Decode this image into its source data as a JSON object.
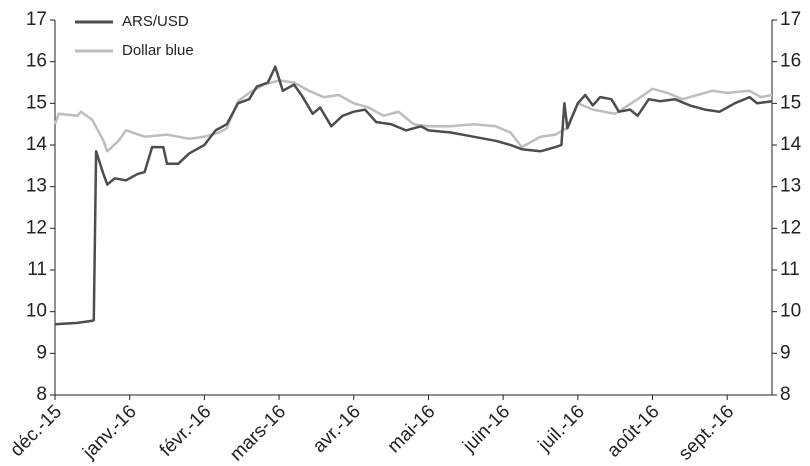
{
  "chart_data": {
    "type": "line",
    "xlim": [
      0,
      9.6
    ],
    "xticks": [
      {
        "value": 0,
        "label": "déc.-15"
      },
      {
        "value": 1,
        "label": "janv.-16"
      },
      {
        "value": 2,
        "label": "févr.-16"
      },
      {
        "value": 3,
        "label": "mars-16"
      },
      {
        "value": 4,
        "label": "avr.-16"
      },
      {
        "value": 5,
        "label": "mai-16"
      },
      {
        "value": 6,
        "label": "juin-16"
      },
      {
        "value": 7,
        "label": "juil.-16"
      },
      {
        "value": 8,
        "label": "août-16"
      },
      {
        "value": 9,
        "label": "sept.-16"
      }
    ],
    "ylim": [
      8,
      17
    ],
    "yticks": [
      8,
      9,
      10,
      11,
      12,
      13,
      14,
      15,
      16,
      17
    ],
    "y2lim": [
      8,
      17
    ],
    "y2ticks": [
      8,
      9,
      10,
      11,
      12,
      13,
      14,
      15,
      16,
      17
    ],
    "legend": "upper left",
    "series": [
      {
        "name": "ARS/USD",
        "color": "#4d4d4d",
        "x": [
          0,
          0.3,
          0.5,
          0.52,
          0.55,
          0.65,
          0.7,
          0.8,
          0.95,
          1.1,
          1.2,
          1.3,
          1.45,
          1.5,
          1.65,
          1.8,
          2.0,
          2.15,
          2.3,
          2.45,
          2.6,
          2.7,
          2.85,
          2.95,
          3.05,
          3.2,
          3.3,
          3.45,
          3.55,
          3.7,
          3.85,
          4.0,
          4.15,
          4.3,
          4.5,
          4.7,
          4.9,
          5.0,
          5.3,
          5.6,
          5.9,
          6.1,
          6.25,
          6.5,
          6.7,
          6.78,
          6.82,
          6.86,
          7.0,
          7.1,
          7.2,
          7.3,
          7.45,
          7.55,
          7.7,
          7.8,
          7.95,
          8.1,
          8.3,
          8.5,
          8.7,
          8.9,
          9.1,
          9.3,
          9.4,
          9.6
        ],
        "values": [
          9.7,
          9.73,
          9.78,
          9.8,
          13.85,
          13.3,
          13.05,
          13.2,
          13.15,
          13.3,
          13.35,
          13.95,
          13.95,
          13.55,
          13.55,
          13.8,
          14.0,
          14.35,
          14.5,
          15.0,
          15.1,
          15.4,
          15.5,
          15.88,
          15.3,
          15.45,
          15.2,
          14.75,
          14.9,
          14.45,
          14.7,
          14.8,
          14.85,
          14.55,
          14.5,
          14.35,
          14.45,
          14.35,
          14.3,
          14.2,
          14.1,
          14.0,
          13.9,
          13.85,
          13.95,
          14.0,
          15.0,
          14.4,
          15.0,
          15.2,
          14.95,
          15.15,
          15.1,
          14.8,
          14.85,
          14.7,
          15.1,
          15.05,
          15.1,
          14.95,
          14.85,
          14.8,
          15.0,
          15.15,
          15.0,
          15.05
        ]
      },
      {
        "name": "Dollar blue",
        "color": "#bdbdbd",
        "x": [
          0,
          0.05,
          0.3,
          0.35,
          0.5,
          0.65,
          0.7,
          0.85,
          0.95,
          1.2,
          1.5,
          1.8,
          2.0,
          2.2,
          2.3,
          2.45,
          2.6,
          2.8,
          3.0,
          3.2,
          3.4,
          3.6,
          3.8,
          4.0,
          4.2,
          4.4,
          4.6,
          4.8,
          5.0,
          5.3,
          5.6,
          5.9,
          6.1,
          6.25,
          6.5,
          6.7,
          6.85,
          7.0,
          7.2,
          7.5,
          7.8,
          8.0,
          8.2,
          8.4,
          8.6,
          8.8,
          9.0,
          9.3,
          9.45,
          9.6
        ],
        "values": [
          14.5,
          14.75,
          14.7,
          14.8,
          14.6,
          14.1,
          13.85,
          14.1,
          14.35,
          14.2,
          14.25,
          14.15,
          14.2,
          14.3,
          14.4,
          15.05,
          15.25,
          15.45,
          15.55,
          15.5,
          15.3,
          15.15,
          15.2,
          15.0,
          14.9,
          14.7,
          14.8,
          14.5,
          14.45,
          14.45,
          14.5,
          14.45,
          14.3,
          13.95,
          14.2,
          14.25,
          14.4,
          15.0,
          14.85,
          14.75,
          15.1,
          15.35,
          15.25,
          15.1,
          15.2,
          15.3,
          15.25,
          15.3,
          15.15,
          15.2
        ]
      }
    ]
  }
}
